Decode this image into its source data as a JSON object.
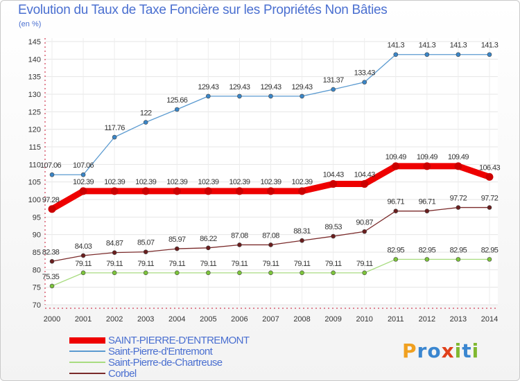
{
  "title": "Evolution du Taux de Taxe Foncière sur les Propriétés Non Bâties",
  "unit_label": "(en %)",
  "logo": {
    "text": "Proxiti",
    "letters": [
      "P",
      "r",
      "o",
      "x",
      "i",
      "t",
      "i"
    ],
    "colors": [
      "#f0a020",
      "#3a86d0",
      "#3a86d0",
      "#e0401a",
      "#80b830",
      "#3a86d0",
      "#80b830"
    ]
  },
  "chart_data": {
    "type": "line",
    "title": "Evolution du Taux de Taxe Foncière sur les Propriétés Non Bâties",
    "ylabel": "(en %)",
    "xlabel": "",
    "ylim": [
      70,
      145
    ],
    "yticks": [
      70,
      75,
      80,
      85,
      90,
      95,
      100,
      105,
      110,
      115,
      120,
      125,
      130,
      135,
      140,
      145
    ],
    "grid": true,
    "categories": [
      "2000",
      "2001",
      "2002",
      "2003",
      "2004",
      "2005",
      "2006",
      "2007",
      "2008",
      "2009",
      "2010",
      "2011",
      "2012",
      "2013",
      "2014"
    ],
    "series": [
      {
        "name": "SAINT-PIERRE-D'ENTREMONT",
        "color": "#ee0000",
        "thick": true,
        "values": [
          97.28,
          102.39,
          102.39,
          102.39,
          102.39,
          102.39,
          102.39,
          102.39,
          102.39,
          104.43,
          104.43,
          109.49,
          109.49,
          109.49,
          106.43
        ],
        "labels": [
          "97.28",
          "102.39",
          "102.39",
          "102.39",
          "102.39",
          "102.39",
          "102.39",
          "102.39",
          "102.39",
          "104.43",
          "104.43",
          "109.49",
          "109.49",
          "109.49",
          "106.43"
        ]
      },
      {
        "name": "Saint-Pierre-d'Entremont",
        "color": "#5a9ad0",
        "marker": "#3a86c8",
        "values": [
          107.06,
          107.06,
          117.76,
          122,
          125.66,
          129.43,
          129.43,
          129.43,
          129.43,
          131.37,
          133.43,
          141.3,
          141.3,
          141.3,
          141.3
        ],
        "labels": [
          "107.06",
          "107.06",
          "117.76",
          "122",
          "125.66",
          "129.43",
          "129.43",
          "129.43",
          "129.43",
          "131.37",
          "133.43",
          "141.3",
          "141.3",
          "141.3",
          "141.3"
        ]
      },
      {
        "name": "Saint-Pierre-de-Chartreuse",
        "color": "#a8dc80",
        "marker": "#7cc43a",
        "values": [
          75.35,
          79.11,
          79.11,
          79.11,
          79.11,
          79.11,
          79.11,
          79.11,
          79.11,
          79.11,
          79.11,
          82.95,
          82.95,
          82.95,
          82.95
        ],
        "labels": [
          "75.35",
          "79.11",
          "79.11",
          "79.11",
          "79.11",
          "79.11",
          "79.11",
          "79.11",
          "79.11",
          "79.11",
          "79.11",
          "82.95",
          "82.95",
          "82.95",
          "82.95"
        ]
      },
      {
        "name": "Corbel",
        "color": "#7a2a2a",
        "marker": "#6a1e1e",
        "values": [
          82.38,
          84.03,
          84.87,
          85.07,
          85.97,
          86.22,
          87.08,
          87.08,
          88.31,
          89.53,
          90.87,
          96.71,
          96.71,
          97.72,
          97.72
        ],
        "labels": [
          "82.38",
          "84.03",
          "84.87",
          "85.07",
          "85.97",
          "86.22",
          "87.08",
          "87.08",
          "88.31",
          "89.53",
          "90.87",
          "96.71",
          "96.71",
          "97.72",
          "97.72"
        ]
      }
    ]
  }
}
